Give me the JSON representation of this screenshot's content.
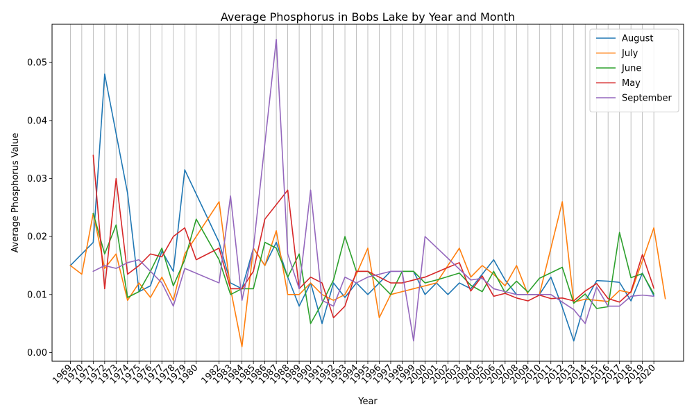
{
  "chart_data": {
    "type": "line",
    "title": "Average Phosphorus in Bobs Lake by Year and Month",
    "xlabel": "Year",
    "ylabel": "Average Phosphorus Value",
    "ylim": [
      -0.0015,
      0.0566
    ],
    "xlim": [
      1967.4,
      2022.6
    ],
    "yticks": [
      "0.00",
      "0.01",
      "0.02",
      "0.03",
      "0.04",
      "0.05"
    ],
    "xtick_labels": [
      "1969",
      "1970",
      "1971",
      "1972",
      "1973",
      "1974",
      "1975",
      "1976",
      "1977",
      "1978",
      "1979",
      "1980",
      "1982",
      "1983",
      "1984",
      "1985",
      "1986",
      "1987",
      "1988",
      "1989",
      "1990",
      "1991",
      "1992",
      "1993",
      "1994",
      "1995",
      "1996",
      "1997",
      "1998",
      "1999",
      "2000",
      "2001",
      "2002",
      "2003",
      "2004",
      "2005",
      "2006",
      "2007",
      "2008",
      "2009",
      "2010",
      "2011",
      "2012",
      "2013",
      "2014",
      "2015",
      "2016",
      "2017",
      "2018",
      "2019",
      "2020"
    ],
    "x_grid": true,
    "y_grid": false,
    "legend_position": "top-right",
    "colors": {
      "August": "#1f77b4",
      "July": "#ff7f0e",
      "June": "#2ca02c",
      "May": "#d62728",
      "September": "#9467bd",
      "grid": "#b0b0b0"
    },
    "series": [
      {
        "name": "August",
        "points": [
          [
            1969,
            0.015
          ],
          [
            1971,
            0.019
          ],
          [
            1972,
            0.048
          ],
          [
            1974,
            0.0275
          ],
          [
            1975,
            0.0105
          ],
          [
            1976,
            0.0115
          ],
          [
            1977,
            0.0175
          ],
          [
            1978,
            0.014
          ],
          [
            1979,
            0.0315
          ],
          [
            1982,
            0.019
          ],
          [
            1983,
            0.012
          ],
          [
            1984,
            0.011
          ],
          [
            1985,
            0.018
          ],
          [
            1986,
            0.015
          ],
          [
            1987,
            0.019
          ],
          [
            1988,
            0.013
          ],
          [
            1989,
            0.008
          ],
          [
            1990,
            0.012
          ],
          [
            1991,
            0.005
          ],
          [
            1992,
            0.012
          ],
          [
            1993,
            0.0095
          ],
          [
            1994,
            0.012
          ],
          [
            1995,
            0.01
          ],
          [
            1996,
            0.012
          ],
          [
            1997,
            0.014
          ],
          [
            1998,
            0.014
          ],
          [
            1999,
            0.014
          ],
          [
            2000,
            0.01
          ],
          [
            2001,
            0.012
          ],
          [
            2002,
            0.01
          ],
          [
            2003,
            0.012
          ],
          [
            2004,
            0.011
          ],
          [
            2005,
            0.0135
          ],
          [
            2006,
            0.016
          ],
          [
            2007,
            0.0125
          ],
          [
            2008,
            0.01
          ],
          [
            2009,
            0.01
          ],
          [
            2010,
            0.01
          ],
          [
            2011,
            0.013
          ],
          [
            2012,
            0.0078
          ],
          [
            2013,
            0.002
          ],
          [
            2014,
            0.0088
          ],
          [
            2015,
            0.0124
          ],
          [
            2016,
            0.0123
          ],
          [
            2017,
            0.0121
          ],
          [
            2018,
            0.0089
          ],
          [
            2019,
            0.0137
          ],
          [
            2020,
            0.0098
          ]
        ]
      },
      {
        "name": "July",
        "points": [
          [
            1969,
            0.015
          ],
          [
            1970,
            0.0135
          ],
          [
            1971,
            0.024
          ],
          [
            1972,
            0.0145
          ],
          [
            1973,
            0.017
          ],
          [
            1974,
            0.009
          ],
          [
            1975,
            0.012
          ],
          [
            1976,
            0.0095
          ],
          [
            1977,
            0.013
          ],
          [
            1978,
            0.009
          ],
          [
            1979,
            0.017
          ],
          [
            1982,
            0.026
          ],
          [
            1983,
            0.011
          ],
          [
            1984,
            0.001
          ],
          [
            1985,
            0.018
          ],
          [
            1986,
            0.015
          ],
          [
            1987,
            0.021
          ],
          [
            1988,
            0.01
          ],
          [
            1989,
            0.01
          ],
          [
            1990,
            0.012
          ],
          [
            1991,
            0.01
          ],
          [
            1992,
            0.009
          ],
          [
            1993,
            0.01
          ],
          [
            1994,
            0.0135
          ],
          [
            1995,
            0.018
          ],
          [
            1996,
            0.006
          ],
          [
            1997,
            0.01
          ],
          [
            1998,
            0.0105
          ],
          [
            1999,
            0.011
          ],
          [
            2000,
            0.0115
          ],
          [
            2001,
            0.012
          ],
          [
            2002,
            0.015
          ],
          [
            2003,
            0.018
          ],
          [
            2004,
            0.013
          ],
          [
            2005,
            0.015
          ],
          [
            2006,
            0.0135
          ],
          [
            2007,
            0.0115
          ],
          [
            2008,
            0.015
          ],
          [
            2009,
            0.01
          ],
          [
            2010,
            0.01
          ],
          [
            2011,
            0.018
          ],
          [
            2012,
            0.026
          ],
          [
            2013,
            0.0087
          ],
          [
            2014,
            0.0092
          ],
          [
            2015,
            0.009
          ],
          [
            2016,
            0.0088
          ],
          [
            2017,
            0.0107
          ],
          [
            2018,
            0.0103
          ],
          [
            2019,
            0.0158
          ],
          [
            2020,
            0.0215
          ],
          [
            2021,
            0.0093
          ]
        ]
      },
      {
        "name": "June",
        "points": [
          [
            1971,
            0.024
          ],
          [
            1972,
            0.017
          ],
          [
            1973,
            0.022
          ],
          [
            1974,
            0.0095
          ],
          [
            1975,
            0.0105
          ],
          [
            1976,
            0.014
          ],
          [
            1977,
            0.018
          ],
          [
            1978,
            0.0115
          ],
          [
            1979,
            0.016
          ],
          [
            1980,
            0.023
          ],
          [
            1982,
            0.016
          ],
          [
            1983,
            0.01
          ],
          [
            1984,
            0.011
          ],
          [
            1985,
            0.011
          ],
          [
            1986,
            0.019
          ],
          [
            1987,
            0.018
          ],
          [
            1988,
            0.013
          ],
          [
            1989,
            0.017
          ],
          [
            1990,
            0.005
          ],
          [
            1991,
            0.0085
          ],
          [
            1992,
            0.0125
          ],
          [
            1993,
            0.02
          ],
          [
            1994,
            0.014
          ],
          [
            1995,
            0.014
          ],
          [
            1996,
            0.012
          ],
          [
            1997,
            0.01
          ],
          [
            1998,
            0.014
          ],
          [
            1999,
            0.014
          ],
          [
            2000,
            0.012
          ],
          [
            2001,
            0.0125
          ],
          [
            2003,
            0.0137
          ],
          [
            2004,
            0.0116
          ],
          [
            2005,
            0.0105
          ],
          [
            2006,
            0.014
          ],
          [
            2007,
            0.0103
          ],
          [
            2008,
            0.0123
          ],
          [
            2009,
            0.0104
          ],
          [
            2010,
            0.0128
          ],
          [
            2012,
            0.0147
          ],
          [
            2013,
            0.0085
          ],
          [
            2014,
            0.0101
          ],
          [
            2015,
            0.0076
          ],
          [
            2016,
            0.0079
          ],
          [
            2017,
            0.0207
          ],
          [
            2018,
            0.0129
          ],
          [
            2019,
            0.0136
          ],
          [
            2020,
            0.0101
          ]
        ]
      },
      {
        "name": "May",
        "points": [
          [
            1971,
            0.034
          ],
          [
            1972,
            0.011
          ],
          [
            1973,
            0.03
          ],
          [
            1974,
            0.0135
          ],
          [
            1975,
            0.015
          ],
          [
            1976,
            0.017
          ],
          [
            1977,
            0.0165
          ],
          [
            1978,
            0.02
          ],
          [
            1979,
            0.0215
          ],
          [
            1980,
            0.016
          ],
          [
            1982,
            0.018
          ],
          [
            1983,
            0.011
          ],
          [
            1984,
            0.011
          ],
          [
            1985,
            0.014
          ],
          [
            1986,
            0.023
          ],
          [
            1988,
            0.028
          ],
          [
            1989,
            0.011
          ],
          [
            1990,
            0.013
          ],
          [
            1991,
            0.012
          ],
          [
            1992,
            0.006
          ],
          [
            1993,
            0.008
          ],
          [
            1994,
            0.014
          ],
          [
            1995,
            0.014
          ],
          [
            1996,
            0.013
          ],
          [
            1997,
            0.012
          ],
          [
            1998,
            0.012
          ],
          [
            2000,
            0.013
          ],
          [
            2003,
            0.0155
          ],
          [
            2004,
            0.0106
          ],
          [
            2005,
            0.0132
          ],
          [
            2006,
            0.0097
          ],
          [
            2007,
            0.0102
          ],
          [
            2008,
            0.0094
          ],
          [
            2009,
            0.0089
          ],
          [
            2010,
            0.0099
          ],
          [
            2011,
            0.0093
          ],
          [
            2012,
            0.0094
          ],
          [
            2013,
            0.0089
          ],
          [
            2014,
            0.0106
          ],
          [
            2015,
            0.0119
          ],
          [
            2016,
            0.0093
          ],
          [
            2017,
            0.0087
          ],
          [
            2018,
            0.0105
          ],
          [
            2019,
            0.0169
          ],
          [
            2020,
            0.0111
          ]
        ]
      },
      {
        "name": "September",
        "points": [
          [
            1971,
            0.014
          ],
          [
            1972,
            0.015
          ],
          [
            1973,
            0.0145
          ],
          [
            1974,
            0.0155
          ],
          [
            1975,
            0.016
          ],
          [
            1976,
            0.014
          ],
          [
            1977,
            0.012
          ],
          [
            1978,
            0.008
          ],
          [
            1979,
            0.0145
          ],
          [
            1982,
            0.012
          ],
          [
            1983,
            0.027
          ],
          [
            1984,
            0.009
          ],
          [
            1985,
            0.018
          ],
          [
            1986,
            0.036
          ],
          [
            1987,
            0.054
          ],
          [
            1988,
            0.017
          ],
          [
            1989,
            0.011
          ],
          [
            1990,
            0.028
          ],
          [
            1991,
            0.009
          ],
          [
            1992,
            0.008
          ],
          [
            1993,
            0.013
          ],
          [
            1994,
            0.012
          ],
          [
            1995,
            0.013
          ],
          [
            1997,
            0.014
          ],
          [
            1998,
            0.014
          ],
          [
            1999,
            0.002
          ],
          [
            2000,
            0.02
          ],
          [
            2004,
            0.0125
          ],
          [
            2005,
            0.0128
          ],
          [
            2006,
            0.011
          ],
          [
            2007,
            0.0105
          ],
          [
            2008,
            0.01
          ],
          [
            2009,
            0.01
          ],
          [
            2010,
            0.01
          ],
          [
            2011,
            0.01
          ],
          [
            2012,
            0.0087
          ],
          [
            2013,
            0.0074
          ],
          [
            2014,
            0.005
          ],
          [
            2015,
            0.0113
          ],
          [
            2016,
            0.008
          ],
          [
            2017,
            0.008
          ],
          [
            2018,
            0.0097
          ],
          [
            2019,
            0.0099
          ],
          [
            2020,
            0.0097
          ]
        ]
      }
    ]
  }
}
